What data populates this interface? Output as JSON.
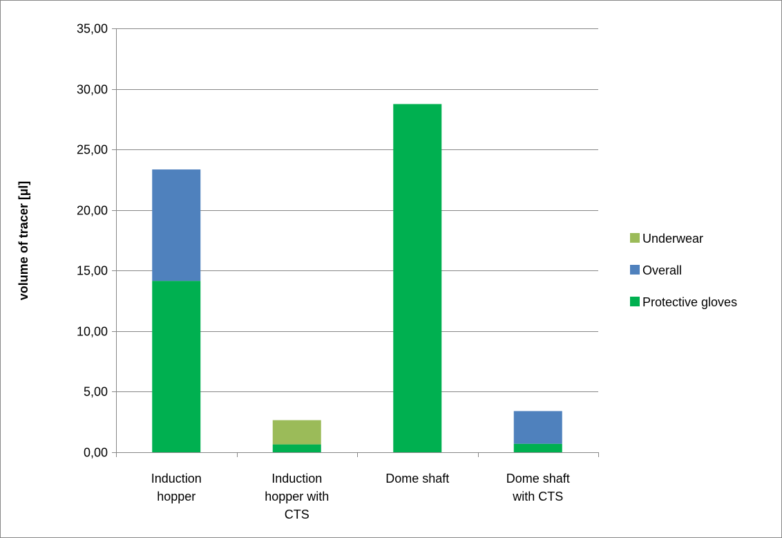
{
  "chart_data": {
    "type": "bar",
    "stacked": true,
    "title": "",
    "xlabel": "",
    "ylabel": "volume of tracer [µl]",
    "ylim": [
      0,
      35
    ],
    "ytick_step": 5,
    "ytick_labels": [
      "0,00",
      "5,00",
      "10,00",
      "15,00",
      "20,00",
      "25,00",
      "30,00",
      "35,00"
    ],
    "grid": "horizontal",
    "legend_position": "right",
    "categories": [
      [
        "Induction",
        "hopper"
      ],
      [
        "Induction",
        "hopper with",
        "CTS"
      ],
      [
        "Dome shaft"
      ],
      [
        "Dome shaft",
        "with CTS"
      ]
    ],
    "series": [
      {
        "name": "Protective gloves",
        "color": "#00b050",
        "values": [
          14.15,
          0.65,
          28.75,
          0.7
        ]
      },
      {
        "name": "Overall",
        "color": "#4f81bd",
        "values": [
          9.2,
          0.0,
          0.0,
          2.7
        ]
      },
      {
        "name": "Underwear",
        "color": "#9bbb59",
        "values": [
          0.0,
          2.0,
          0.0,
          0.0
        ]
      }
    ],
    "legend_order": [
      "Underwear",
      "Overall",
      "Protective gloves"
    ]
  }
}
